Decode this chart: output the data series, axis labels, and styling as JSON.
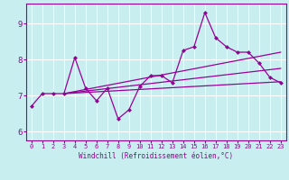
{
  "xlabel": "Windchill (Refroidissement éolien,°C)",
  "background_color": "#c8eef0",
  "line_color": "#990099",
  "grid_color": "#ffffff",
  "xlim": [
    -0.5,
    23.5
  ],
  "ylim": [
    5.75,
    9.55
  ],
  "yticks": [
    6,
    7,
    8,
    9
  ],
  "xticks": [
    0,
    1,
    2,
    3,
    4,
    5,
    6,
    7,
    8,
    9,
    10,
    11,
    12,
    13,
    14,
    15,
    16,
    17,
    18,
    19,
    20,
    21,
    22,
    23
  ],
  "main_y": [
    6.7,
    7.05,
    7.05,
    7.05,
    8.05,
    7.2,
    6.85,
    7.2,
    6.35,
    6.6,
    7.25,
    7.55,
    7.55,
    7.35,
    8.25,
    8.35,
    9.3,
    8.6,
    8.35,
    8.2,
    8.2,
    7.9,
    7.5,
    7.35
  ],
  "trend1_x": [
    3,
    23
  ],
  "trend1_y": [
    7.05,
    7.38
  ],
  "trend2_x": [
    3,
    23
  ],
  "trend2_y": [
    7.05,
    7.75
  ],
  "trend3_x": [
    3,
    23
  ],
  "trend3_y": [
    7.05,
    8.2
  ]
}
